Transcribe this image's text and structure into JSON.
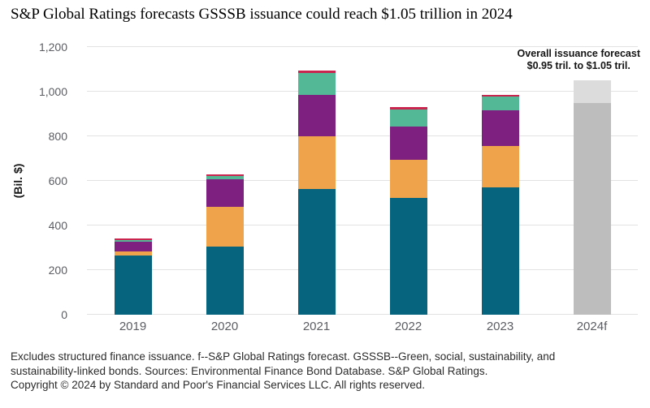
{
  "title": "S&P Global Ratings forecasts GSSSB issuance could reach $1.05 trillion in 2024",
  "y_axis": {
    "label": "(Bil. $)",
    "ticks": [
      {
        "label": "1,200",
        "value": 1200
      },
      {
        "label": "1,000",
        "value": 1000
      },
      {
        "label": "800",
        "value": 800
      },
      {
        "label": "600",
        "value": 600
      },
      {
        "label": "400",
        "value": 400
      },
      {
        "label": "200",
        "value": 200
      },
      {
        "label": "0",
        "value": 0
      }
    ]
  },
  "annotation": {
    "line1": "Overall issuance forecast",
    "line2": "$0.95 tril. to $1.05 tril."
  },
  "chart_data": {
    "type": "bar",
    "stacked": true,
    "title": "S&P Global Ratings forecasts GSSSB issuance could reach $1.05 trillion in 2024",
    "xlabel": "",
    "ylabel": "(Bil. $)",
    "ylim": [
      0,
      1200
    ],
    "grid": true,
    "legend": "none",
    "categories": [
      "2019",
      "2020",
      "2021",
      "2022",
      "2023",
      "2024f"
    ],
    "series": [
      {
        "name": "teal-segment",
        "color": "#06647f",
        "values": [
          267,
          305,
          565,
          525,
          570,
          0
        ]
      },
      {
        "name": "orange-segment",
        "color": "#efa34b",
        "values": [
          18,
          178,
          235,
          170,
          185,
          0
        ]
      },
      {
        "name": "purple-segment",
        "color": "#7d2080",
        "values": [
          44,
          125,
          185,
          150,
          160,
          0
        ]
      },
      {
        "name": "seafoam-segment",
        "color": "#52b895",
        "values": [
          5,
          15,
          100,
          75,
          62,
          0
        ]
      },
      {
        "name": "crimson-segment",
        "color": "#c9254f",
        "values": [
          9,
          7,
          8,
          10,
          8,
          0
        ]
      }
    ],
    "totals": [
      343,
      630,
      1093,
      930,
      985,
      null
    ],
    "forecast": {
      "category": "2024f",
      "range_low": 950,
      "range_high": 1050,
      "base_color": "#bdbdbd",
      "range_color": "#dcdcdc",
      "annotation": "Overall issuance forecast $0.95 tril. to $1.05 tril."
    }
  },
  "footnotes": {
    "notes": "Excludes structured finance issuance. f--S&P Global Ratings forecast. GSSSB--Green, social, sustainability, and sustainability-linked bonds. Sources: Environmental Finance Bond Database. S&P Global Ratings.",
    "copyright": "Copyright © 2024 by Standard and Poor's Financial Services LLC. All rights reserved."
  }
}
